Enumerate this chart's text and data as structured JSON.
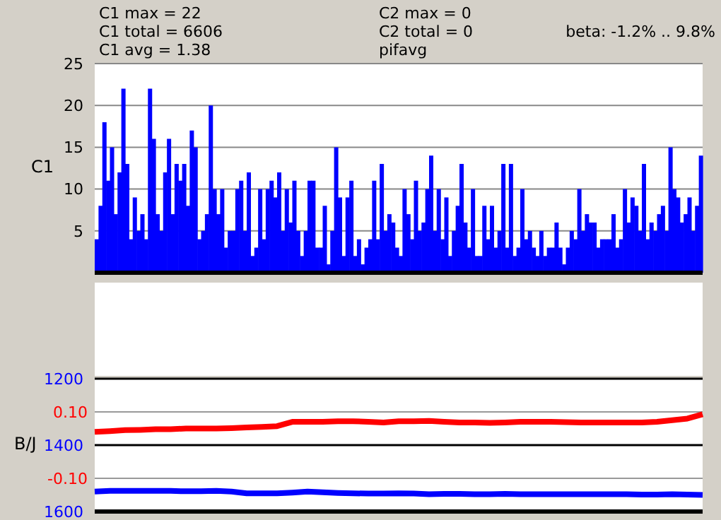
{
  "chart_data": [
    {
      "type": "bar",
      "ylabel": "C1",
      "annotations": [
        "C1 max = 22",
        "C1 total = 6606",
        "C1 avg = 1.38",
        "C2 max = 0",
        "C2 total = 0",
        "pifavg",
        "beta: -1.2% .. 9.8%"
      ],
      "categories": [
        null,
        null,
        null,
        null,
        null,
        null,
        null,
        null,
        null,
        null,
        null,
        null,
        null,
        null,
        null,
        null,
        null,
        null,
        null,
        null,
        null,
        null,
        null,
        null,
        null,
        null,
        null,
        null,
        null,
        null,
        null,
        null,
        null,
        null,
        null,
        null,
        null,
        null,
        null,
        null,
        null,
        null,
        null,
        null,
        null,
        null,
        null,
        null,
        null,
        null,
        null,
        null,
        null,
        null,
        null,
        null,
        null,
        null,
        null,
        null,
        null,
        null,
        null,
        null,
        null,
        null,
        null,
        null,
        null,
        null,
        null,
        null,
        null,
        null,
        null,
        null,
        null,
        null,
        null,
        null,
        null,
        null,
        null,
        null,
        null,
        null,
        null,
        null,
        null,
        null,
        null,
        null,
        null,
        null,
        null,
        null,
        null,
        null,
        null,
        null,
        null,
        null,
        null,
        null,
        null,
        null,
        null,
        null,
        null,
        null,
        null,
        null,
        null,
        null,
        null,
        null,
        null,
        null,
        null,
        null,
        null,
        null,
        null,
        null,
        null,
        null,
        null,
        null,
        null,
        null,
        null,
        null,
        null,
        null,
        null,
        null,
        null,
        null,
        null,
        null,
        null,
        null,
        null,
        null,
        null,
        null,
        null,
        null,
        null,
        null,
        null,
        null,
        null,
        null,
        null,
        null,
        null,
        null,
        null,
        null
      ],
      "series": [
        {
          "color": "#0000ff",
          "values": [
            4,
            8,
            18,
            11,
            15,
            7,
            12,
            22,
            13,
            4,
            9,
            5,
            7,
            4,
            22,
            16,
            7,
            5,
            12,
            16,
            7,
            13,
            11,
            13,
            8,
            17,
            15,
            4,
            5,
            7,
            20,
            10,
            7,
            10,
            3,
            5,
            5,
            10,
            11,
            5,
            12,
            2,
            3,
            10,
            4,
            10,
            11,
            9,
            12,
            5,
            10,
            6,
            11,
            5,
            2,
            5,
            11,
            11,
            3,
            3,
            8,
            1,
            5,
            15,
            9,
            2,
            9,
            11,
            2,
            4,
            1,
            3,
            4,
            11,
            4,
            13,
            5,
            7,
            6,
            3,
            2,
            10,
            7,
            4,
            11,
            5,
            6,
            10,
            14,
            5,
            10,
            4,
            9,
            2,
            5,
            8,
            13,
            6,
            3,
            10,
            2,
            2,
            8,
            4,
            8,
            3,
            5,
            13,
            3,
            13,
            2,
            3,
            10,
            4,
            5,
            3,
            2,
            5,
            2,
            3,
            3,
            6,
            3,
            1,
            3,
            5,
            4,
            10,
            5,
            7,
            6,
            6,
            3,
            4,
            4,
            4,
            7,
            3,
            4,
            10,
            6,
            9,
            8,
            5,
            13,
            4,
            6,
            5,
            7,
            8,
            5,
            15,
            10,
            9,
            6,
            7,
            9,
            5,
            8,
            14
          ]
        }
      ],
      "ylim": [
        0,
        25
      ],
      "yticks": [
        5,
        10,
        15,
        20,
        25
      ],
      "grid": "y",
      "tick_labels": "y"
    },
    {
      "type": "line",
      "ylabel": "B/J",
      "categories": [
        null,
        null,
        null,
        null,
        null,
        null,
        null,
        null,
        null,
        null,
        null,
        null,
        null,
        null,
        null,
        null,
        null,
        null,
        null,
        null,
        null,
        null,
        null,
        null,
        null,
        null,
        null,
        null,
        null,
        null,
        null,
        null,
        null,
        null,
        null,
        null,
        null,
        null,
        null,
        null,
        null
      ],
      "series": [
        {
          "color": "#ff0000",
          "axis": "y2",
          "values": [
            0.04,
            0.042,
            0.045,
            0.046,
            0.048,
            0.048,
            0.05,
            0.05,
            0.05,
            0.051,
            0.053,
            0.055,
            0.057,
            0.07,
            0.07,
            0.07,
            0.072,
            0.072,
            0.07,
            0.068,
            0.072,
            0.072,
            0.073,
            0.07,
            0.068,
            0.068,
            0.067,
            0.068,
            0.07,
            0.07,
            0.07,
            0.069,
            0.068,
            0.068,
            0.068,
            0.068,
            0.068,
            0.07,
            0.075,
            0.08,
            0.093
          ]
        },
        {
          "color": "#0000ff",
          "values": [
            1540,
            1538,
            1538,
            1538,
            1538,
            1538,
            1539,
            1539,
            1538,
            1540,
            1545,
            1545,
            1545,
            1543,
            1540,
            1542,
            1544,
            1545,
            1546,
            1546,
            1545,
            1546,
            1548,
            1547,
            1547,
            1548,
            1548,
            1547,
            1548,
            1548,
            1548,
            1548,
            1548,
            1548,
            1548,
            1548,
            1549,
            1549,
            1548,
            1549,
            1550
          ]
        }
      ],
      "ylim": [
        1600,
        1200
      ],
      "yticks": [
        1200,
        1400,
        1600
      ],
      "y2lim": [
        -0.2,
        0.2
      ],
      "y2ticks": [
        {
          "value": 0.1,
          "label": "0.10"
        },
        {
          "value": -0.1,
          "label": "-0.10"
        }
      ],
      "grid": "y",
      "tick_labels": "y",
      "marker": "none",
      "line_style": "solid"
    }
  ]
}
